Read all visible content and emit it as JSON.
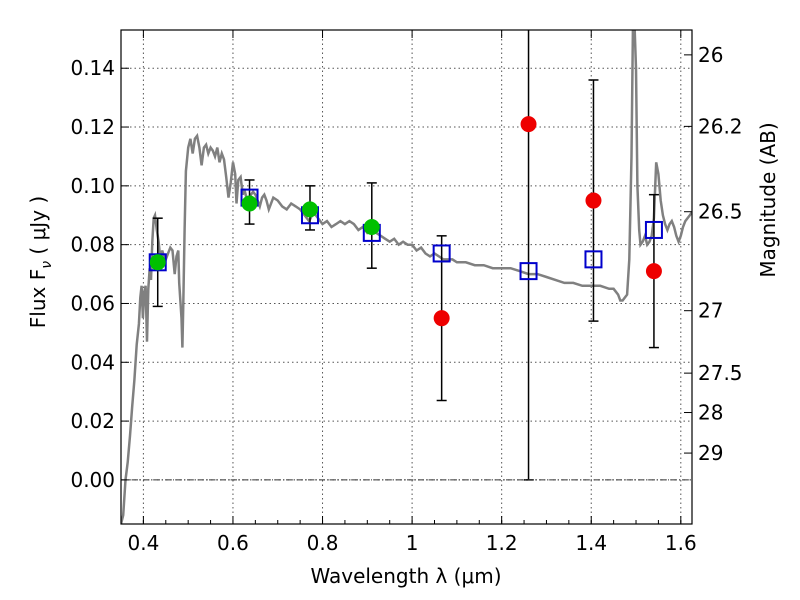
{
  "chart_data": {
    "type": "scatter",
    "xlabel": "Wavelength  λ (μm)",
    "ylabel": "Flux  F",
    "ylabel_sub": "ν",
    "ylabel_unit": " ( μJy )",
    "y2label": "Magnitude (AB)",
    "xlim": [
      0.35,
      1.625
    ],
    "ylim": [
      -0.015,
      0.153
    ],
    "grid": true,
    "x_ticks": [
      0.4,
      0.6,
      0.8,
      1.0,
      1.2,
      1.4,
      1.6
    ],
    "x_tick_labels": [
      "0.4",
      "0.6",
      "0.8",
      "1",
      "1.2",
      "1.4",
      "1.6"
    ],
    "y_ticks": [
      0.0,
      0.02,
      0.04,
      0.06,
      0.08,
      0.1,
      0.12,
      0.14
    ],
    "y_tick_labels": [
      "0.00",
      "0.02",
      "0.04",
      "0.06",
      "0.08",
      "0.10",
      "0.12",
      "0.14"
    ],
    "y2_tick_labels": [
      "26",
      "26.2",
      "26.5",
      "27",
      "27.5",
      "28",
      "29"
    ],
    "y2_tick_values": [
      26.0,
      26.2,
      26.5,
      27.0,
      27.5,
      28.0,
      29.0
    ],
    "colors": {
      "template": "#808080",
      "model": "#0000cc",
      "detection": "#00c000",
      "nondetection": "#ee0000",
      "errorbar": "#000000",
      "grid": "#555555"
    },
    "series": [
      {
        "kind": "template-line",
        "points": [
          [
            0.35,
            -0.015
          ],
          [
            0.355,
            -0.012
          ],
          [
            0.36,
            0.0
          ],
          [
            0.365,
            0.006
          ],
          [
            0.37,
            0.015
          ],
          [
            0.375,
            0.025
          ],
          [
            0.38,
            0.034
          ],
          [
            0.385,
            0.046
          ],
          [
            0.39,
            0.053
          ],
          [
            0.393,
            0.062
          ],
          [
            0.396,
            0.066
          ],
          [
            0.399,
            0.055
          ],
          [
            0.402,
            0.064
          ],
          [
            0.405,
            0.066
          ],
          [
            0.408,
            0.047
          ],
          [
            0.411,
            0.065
          ],
          [
            0.414,
            0.072
          ],
          [
            0.417,
            0.068
          ],
          [
            0.42,
            0.081
          ],
          [
            0.423,
            0.089
          ],
          [
            0.426,
            0.09
          ],
          [
            0.43,
            0.085
          ],
          [
            0.434,
            0.081
          ],
          [
            0.438,
            0.075
          ],
          [
            0.442,
            0.078
          ],
          [
            0.446,
            0.076
          ],
          [
            0.45,
            0.075
          ],
          [
            0.455,
            0.077
          ],
          [
            0.46,
            0.079
          ],
          [
            0.465,
            0.078
          ],
          [
            0.47,
            0.07
          ],
          [
            0.474,
            0.076
          ],
          [
            0.478,
            0.078
          ],
          [
            0.48,
            0.067
          ],
          [
            0.485,
            0.055
          ],
          [
            0.487,
            0.045
          ],
          [
            0.489,
            0.06
          ],
          [
            0.492,
            0.085
          ],
          [
            0.495,
            0.105
          ],
          [
            0.5,
            0.113
          ],
          [
            0.505,
            0.116
          ],
          [
            0.51,
            0.111
          ],
          [
            0.515,
            0.116
          ],
          [
            0.52,
            0.117
          ],
          [
            0.525,
            0.113
          ],
          [
            0.53,
            0.107
          ],
          [
            0.535,
            0.113
          ],
          [
            0.54,
            0.114
          ],
          [
            0.545,
            0.111
          ],
          [
            0.55,
            0.113
          ],
          [
            0.555,
            0.112
          ],
          [
            0.56,
            0.11
          ],
          [
            0.565,
            0.113
          ],
          [
            0.57,
            0.108
          ],
          [
            0.575,
            0.111
          ],
          [
            0.58,
            0.109
          ],
          [
            0.585,
            0.103
          ],
          [
            0.59,
            0.096
          ],
          [
            0.595,
            0.101
          ],
          [
            0.6,
            0.108
          ],
          [
            0.605,
            0.104
          ],
          [
            0.608,
            0.094
          ],
          [
            0.612,
            0.102
          ],
          [
            0.617,
            0.103
          ],
          [
            0.622,
            0.097
          ],
          [
            0.625,
            0.099
          ],
          [
            0.63,
            0.096
          ],
          [
            0.635,
            0.094
          ],
          [
            0.64,
            0.097
          ],
          [
            0.645,
            0.098
          ],
          [
            0.65,
            0.097
          ],
          [
            0.655,
            0.095
          ],
          [
            0.66,
            0.093
          ],
          [
            0.665,
            0.096
          ],
          [
            0.67,
            0.097
          ],
          [
            0.675,
            0.095
          ],
          [
            0.68,
            0.092
          ],
          [
            0.69,
            0.096
          ],
          [
            0.7,
            0.095
          ],
          [
            0.71,
            0.093
          ],
          [
            0.72,
            0.092
          ],
          [
            0.73,
            0.094
          ],
          [
            0.74,
            0.093
          ],
          [
            0.75,
            0.092
          ],
          [
            0.76,
            0.09
          ],
          [
            0.77,
            0.088
          ],
          [
            0.78,
            0.091
          ],
          [
            0.79,
            0.089
          ],
          [
            0.8,
            0.087
          ],
          [
            0.81,
            0.088
          ],
          [
            0.82,
            0.086
          ],
          [
            0.83,
            0.087
          ],
          [
            0.84,
            0.088
          ],
          [
            0.85,
            0.087
          ],
          [
            0.86,
            0.088
          ],
          [
            0.87,
            0.087
          ],
          [
            0.88,
            0.085
          ],
          [
            0.89,
            0.086
          ],
          [
            0.9,
            0.084
          ],
          [
            0.91,
            0.085
          ],
          [
            0.92,
            0.084
          ],
          [
            0.93,
            0.083
          ],
          [
            0.94,
            0.082
          ],
          [
            0.95,
            0.081
          ],
          [
            0.96,
            0.082
          ],
          [
            0.97,
            0.08
          ],
          [
            0.98,
            0.081
          ],
          [
            0.99,
            0.08
          ],
          [
            1.0,
            0.08
          ],
          [
            1.01,
            0.078
          ],
          [
            1.02,
            0.079
          ],
          [
            1.03,
            0.077
          ],
          [
            1.04,
            0.076
          ],
          [
            1.05,
            0.077
          ],
          [
            1.06,
            0.076
          ],
          [
            1.07,
            0.075
          ],
          [
            1.08,
            0.075
          ],
          [
            1.09,
            0.075
          ],
          [
            1.1,
            0.074
          ],
          [
            1.12,
            0.074
          ],
          [
            1.14,
            0.073
          ],
          [
            1.16,
            0.073
          ],
          [
            1.18,
            0.072
          ],
          [
            1.2,
            0.072
          ],
          [
            1.22,
            0.072
          ],
          [
            1.24,
            0.071
          ],
          [
            1.26,
            0.07
          ],
          [
            1.28,
            0.07
          ],
          [
            1.3,
            0.069
          ],
          [
            1.32,
            0.068
          ],
          [
            1.34,
            0.067
          ],
          [
            1.36,
            0.067
          ],
          [
            1.38,
            0.066
          ],
          [
            1.4,
            0.066
          ],
          [
            1.42,
            0.066
          ],
          [
            1.44,
            0.065
          ],
          [
            1.45,
            0.065
          ],
          [
            1.46,
            0.063
          ],
          [
            1.465,
            0.061
          ],
          [
            1.47,
            0.061
          ],
          [
            1.475,
            0.062
          ],
          [
            1.48,
            0.063
          ],
          [
            1.485,
            0.075
          ],
          [
            1.49,
            0.11
          ],
          [
            1.493,
            0.153
          ],
          [
            1.497,
            0.153
          ],
          [
            1.5,
            0.14
          ],
          [
            1.503,
            0.1
          ],
          [
            1.507,
            0.085
          ],
          [
            1.51,
            0.08
          ],
          [
            1.515,
            0.081
          ],
          [
            1.52,
            0.083
          ],
          [
            1.525,
            0.08
          ],
          [
            1.53,
            0.081
          ],
          [
            1.535,
            0.083
          ],
          [
            1.54,
            0.089
          ],
          [
            1.545,
            0.108
          ],
          [
            1.55,
            0.104
          ],
          [
            1.555,
            0.095
          ],
          [
            1.56,
            0.09
          ],
          [
            1.565,
            0.087
          ],
          [
            1.57,
            0.085
          ],
          [
            1.575,
            0.087
          ],
          [
            1.58,
            0.088
          ],
          [
            1.585,
            0.086
          ],
          [
            1.59,
            0.083
          ],
          [
            1.595,
            0.081
          ],
          [
            1.6,
            0.083
          ],
          [
            1.605,
            0.086
          ],
          [
            1.61,
            0.088
          ],
          [
            1.615,
            0.089
          ],
          [
            1.62,
            0.09
          ],
          [
            1.625,
            0.091
          ]
        ]
      },
      {
        "kind": "model-squares",
        "points": [
          [
            0.432,
            0.074
          ],
          [
            0.637,
            0.096
          ],
          [
            0.772,
            0.09
          ],
          [
            0.91,
            0.084
          ],
          [
            1.066,
            0.077
          ],
          [
            1.26,
            0.071
          ],
          [
            1.405,
            0.075
          ],
          [
            1.54,
            0.085
          ]
        ]
      },
      {
        "kind": "detections",
        "points": [
          [
            0.432,
            0.074
          ],
          [
            0.637,
            0.094
          ],
          [
            0.772,
            0.092
          ],
          [
            0.91,
            0.086
          ]
        ],
        "errors": [
          [
            0.059,
            0.089
          ],
          [
            0.087,
            0.102
          ],
          [
            0.085,
            0.1
          ],
          [
            0.072,
            0.101
          ]
        ]
      },
      {
        "kind": "nondetections",
        "points": [
          [
            1.066,
            0.055
          ],
          [
            1.26,
            0.121
          ],
          [
            1.405,
            0.095
          ],
          [
            1.54,
            0.071
          ]
        ],
        "errors": [
          [
            0.027,
            0.083
          ],
          [
            0.0,
            0.153
          ],
          [
            0.054,
            0.136
          ],
          [
            0.045,
            0.097
          ]
        ]
      }
    ]
  }
}
